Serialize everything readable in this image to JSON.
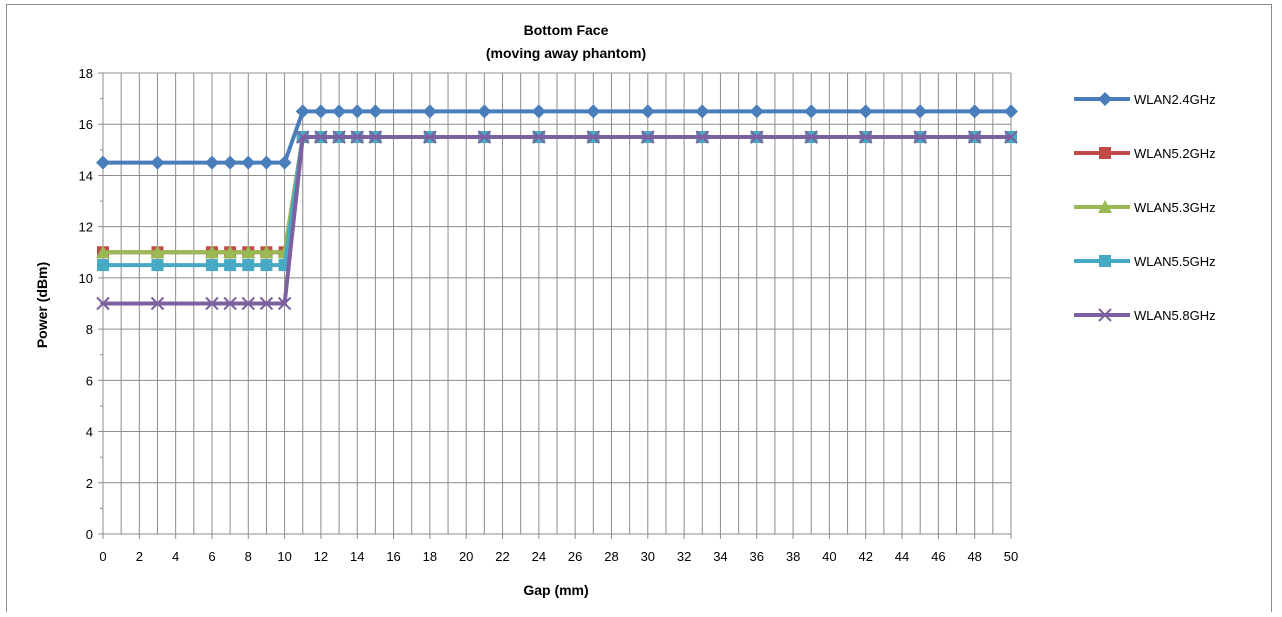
{
  "chart_data": {
    "type": "line",
    "title": "Bottom Face",
    "subtitle": "(moving away phantom)",
    "xlabel": "Gap (mm)",
    "ylabel": "Power (dBm)",
    "xlim": [
      0,
      50
    ],
    "ylim": [
      0,
      18
    ],
    "x_ticks": [
      0,
      2,
      4,
      6,
      8,
      10,
      12,
      14,
      16,
      18,
      20,
      22,
      24,
      26,
      28,
      30,
      32,
      34,
      36,
      38,
      40,
      42,
      44,
      46,
      48,
      50
    ],
    "y_ticks": [
      0,
      2,
      4,
      6,
      8,
      10,
      12,
      14,
      16,
      18
    ],
    "grid": true,
    "legend_position": "right",
    "x": [
      0,
      3,
      6,
      7,
      8,
      9,
      10,
      11,
      12,
      13,
      14,
      15,
      18,
      21,
      24,
      27,
      30,
      33,
      36,
      39,
      42,
      45,
      48,
      50
    ],
    "series": [
      {
        "name": "WLAN2.4GHz",
        "color": "#4a7ebb",
        "marker": "diamond",
        "values": [
          14.5,
          14.5,
          14.5,
          14.5,
          14.5,
          14.5,
          14.5,
          16.5,
          16.5,
          16.5,
          16.5,
          16.5,
          16.5,
          16.5,
          16.5,
          16.5,
          16.5,
          16.5,
          16.5,
          16.5,
          16.5,
          16.5,
          16.5,
          16.5
        ]
      },
      {
        "name": "WLAN5.2GHz",
        "color": "#be4b48",
        "marker": "square",
        "values": [
          11,
          11,
          11,
          11,
          11,
          11,
          11,
          15.5,
          15.5,
          15.5,
          15.5,
          15.5,
          15.5,
          15.5,
          15.5,
          15.5,
          15.5,
          15.5,
          15.5,
          15.5,
          15.5,
          15.5,
          15.5,
          15.5
        ]
      },
      {
        "name": "WLAN5.3GHz",
        "color": "#98b954",
        "marker": "triangle",
        "values": [
          11,
          11,
          11,
          11,
          11,
          11,
          11,
          15.5,
          15.5,
          15.5,
          15.5,
          15.5,
          15.5,
          15.5,
          15.5,
          15.5,
          15.5,
          15.5,
          15.5,
          15.5,
          15.5,
          15.5,
          15.5,
          15.5
        ]
      },
      {
        "name": "WLAN5.5GHz",
        "color": "#46aac5",
        "marker": "square",
        "values": [
          10.5,
          10.5,
          10.5,
          10.5,
          10.5,
          10.5,
          10.5,
          15.5,
          15.5,
          15.5,
          15.5,
          15.5,
          15.5,
          15.5,
          15.5,
          15.5,
          15.5,
          15.5,
          15.5,
          15.5,
          15.5,
          15.5,
          15.5,
          15.5
        ]
      },
      {
        "name": "WLAN5.8GHz",
        "color": "#7d60a0",
        "marker": "x",
        "values": [
          9,
          9,
          9,
          9,
          9,
          9,
          9,
          15.5,
          15.5,
          15.5,
          15.5,
          15.5,
          15.5,
          15.5,
          15.5,
          15.5,
          15.5,
          15.5,
          15.5,
          15.5,
          15.5,
          15.5,
          15.5,
          15.5
        ]
      }
    ]
  }
}
